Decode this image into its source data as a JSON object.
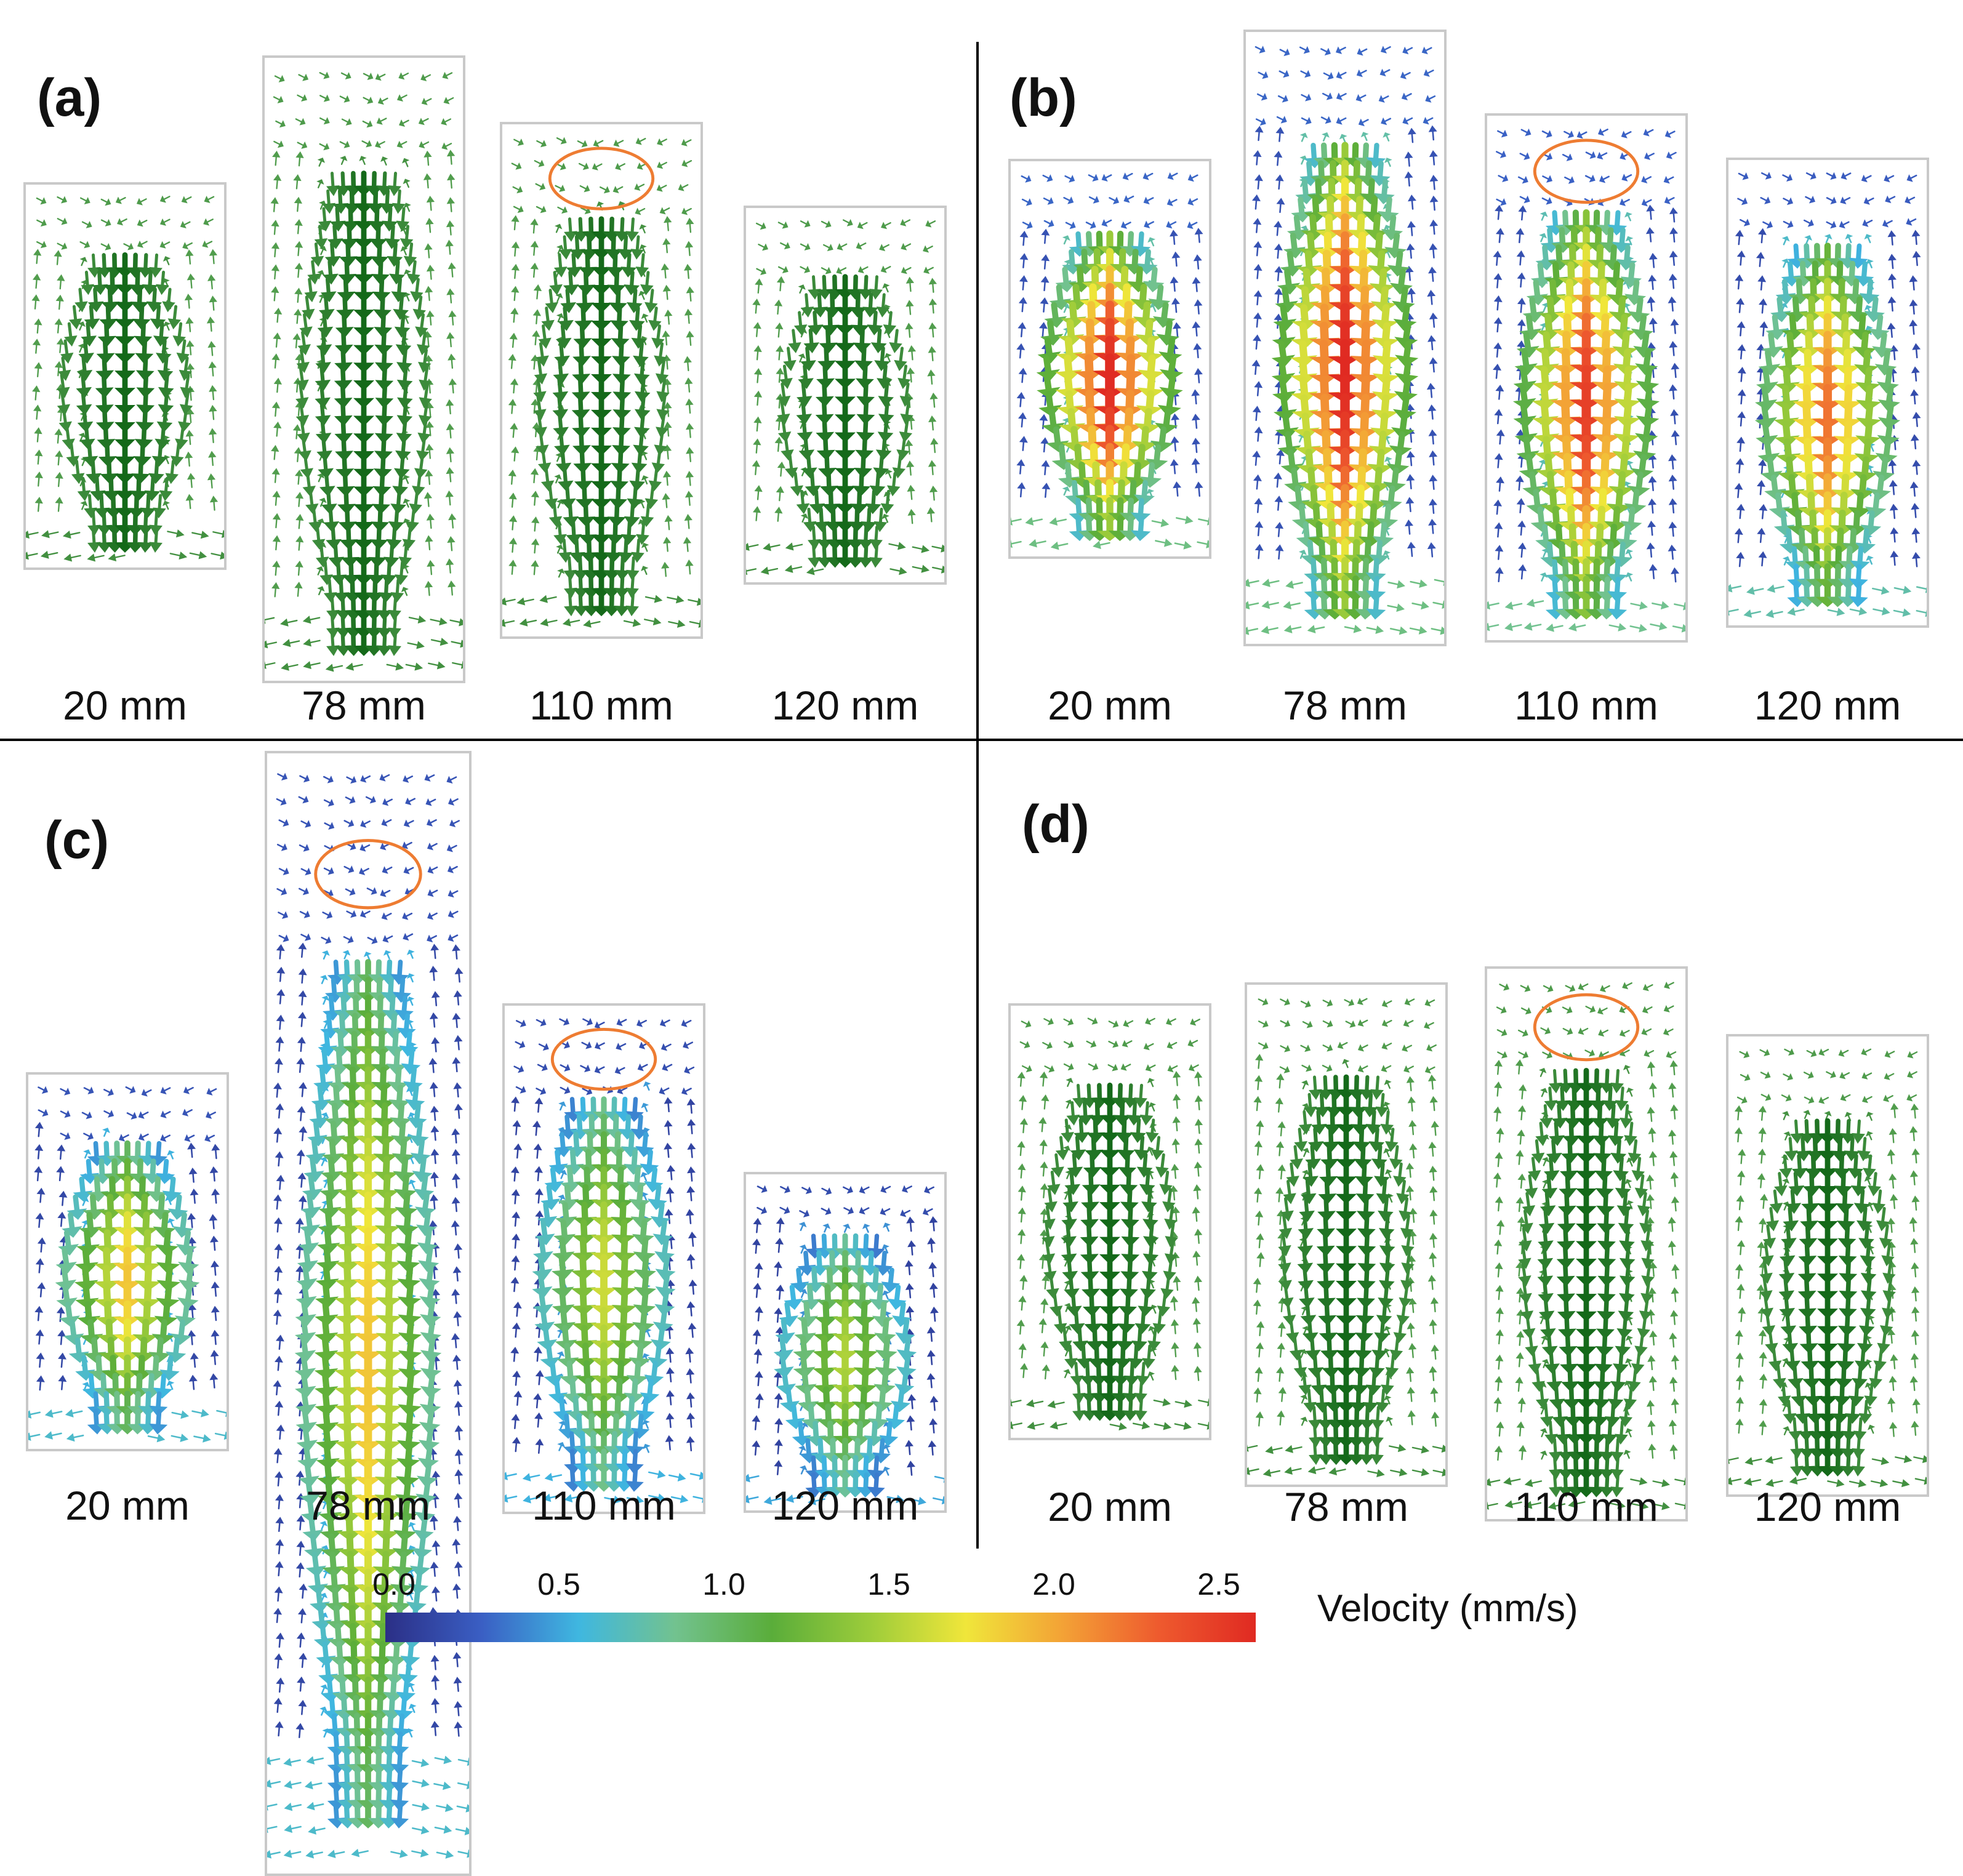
{
  "panels": [
    {
      "letter": "(a)",
      "scheme": "green",
      "cases": [
        {
          "label": "20 mm",
          "intensity": 0.55
        },
        {
          "label": "78 mm",
          "intensity": 0.55
        },
        {
          "label": "110 mm",
          "intensity": 0.55,
          "circled": true
        },
        {
          "label": "120 mm",
          "intensity": 0.55
        }
      ]
    },
    {
      "letter": "(b)",
      "scheme": "velocity",
      "cases": [
        {
          "label": "20 mm",
          "intensity": 1.0
        },
        {
          "label": "78 mm",
          "intensity": 1.0
        },
        {
          "label": "110 mm",
          "intensity": 0.95,
          "circled": true
        },
        {
          "label": "120 mm",
          "intensity": 0.85
        }
      ]
    },
    {
      "letter": "(c)",
      "scheme": "velocity",
      "cases": [
        {
          "label": "20 mm",
          "intensity": 0.72
        },
        {
          "label": "78 mm",
          "intensity": 0.72,
          "circled": true
        },
        {
          "label": "110 mm",
          "intensity": 0.62,
          "circled": true
        },
        {
          "label": "120 mm",
          "intensity": 0.58
        }
      ]
    },
    {
      "letter": "(d)",
      "scheme": "green",
      "cases": [
        {
          "label": "20 mm",
          "intensity": 0.55
        },
        {
          "label": "78 mm",
          "intensity": 0.55
        },
        {
          "label": "110 mm",
          "intensity": 0.55,
          "circled": true
        },
        {
          "label": "120 mm",
          "intensity": 0.55
        }
      ]
    }
  ],
  "colorbar": {
    "ticks": [
      "0.0",
      "0.5",
      "1.0",
      "1.5",
      "2.0",
      "2.5"
    ],
    "min": 0.0,
    "max": 2.5,
    "label": "Velocity (mm/s)",
    "colors": [
      "#2b2f86",
      "#3a5fc4",
      "#3fb7e0",
      "#72c28f",
      "#5aad3a",
      "#9ccc3a",
      "#f0e63a",
      "#f3a236",
      "#ee5a2e",
      "#e02a22"
    ]
  },
  "accent": {
    "circle": "#ee7c32",
    "box_border": "#c9c9c9",
    "green_arrow": "#2e8b2e"
  }
}
